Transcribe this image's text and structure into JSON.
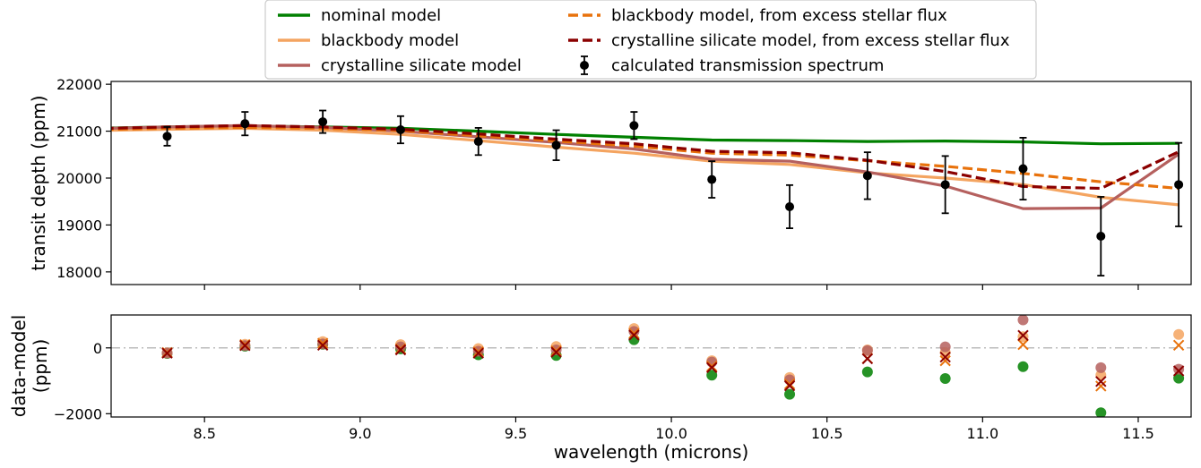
{
  "chart_data": [
    {
      "type": "line",
      "panel": "top",
      "ylabel": "transit depth (ppm)",
      "xlim": [
        8.2,
        11.67
      ],
      "ylim": [
        17730,
        22060
      ],
      "y_ticks": [
        18000,
        19000,
        20000,
        21000,
        22000
      ],
      "grid": false,
      "legend": {
        "placement": "top-center-outside",
        "entries": [
          {
            "label": "nominal model",
            "color": "#008000",
            "style": "solid"
          },
          {
            "label": "blackbody model",
            "color": "#f4a460",
            "style": "solid"
          },
          {
            "label": "crystalline silicate model",
            "color": "#b5605e",
            "style": "solid"
          },
          {
            "label": "blackbody model, from excess stellar flux",
            "color": "#e8720c",
            "style": "dashed"
          },
          {
            "label": "crystalline silicate model, from excess stellar flux",
            "color": "#8b0000",
            "style": "dashed"
          },
          {
            "label": "calculated transmission spectrum",
            "color": "#000000",
            "style": "errorbar"
          }
        ]
      },
      "x_nodes": [
        8.13,
        8.38,
        8.63,
        8.88,
        9.13,
        9.38,
        9.63,
        9.88,
        10.13,
        10.38,
        10.63,
        10.88,
        11.13,
        11.38,
        11.63
      ],
      "series": [
        {
          "name": "nominal model",
          "color": "#008000",
          "style": "solid",
          "values": [
            21060,
            21090,
            21110,
            21090,
            21060,
            21000,
            20930,
            20870,
            20810,
            20800,
            20780,
            20790,
            20770,
            20730,
            20740
          ]
        },
        {
          "name": "blackbody model",
          "color": "#f4a460",
          "style": "solid",
          "values": [
            21010,
            21040,
            21060,
            21020,
            20930,
            20800,
            20660,
            20530,
            20360,
            20290,
            20110,
            20000,
            19860,
            19590,
            19430
          ]
        },
        {
          "name": "crystalline silicate model",
          "color": "#b5605e",
          "style": "solid",
          "values": [
            21050,
            21090,
            21120,
            21080,
            21000,
            20880,
            20760,
            20620,
            20400,
            20360,
            20130,
            19830,
            19350,
            19360,
            20510
          ]
        },
        {
          "name": "blackbody model, from excess stellar flux",
          "color": "#e8720c",
          "style": "dashed",
          "values": [
            21030,
            21060,
            21080,
            21060,
            21010,
            20900,
            20790,
            20680,
            20530,
            20490,
            20370,
            20250,
            20100,
            19920,
            19780
          ]
        },
        {
          "name": "crystalline silicate model, from excess stellar flux",
          "color": "#8b0000",
          "style": "dashed",
          "values": [
            21050,
            21090,
            21120,
            21090,
            21040,
            20940,
            20830,
            20730,
            20570,
            20540,
            20380,
            20140,
            19820,
            19780,
            20560
          ]
        }
      ],
      "points": {
        "name": "calculated transmission spectrum",
        "color": "#000000",
        "x": [
          8.38,
          8.63,
          8.88,
          9.13,
          9.38,
          9.63,
          9.88,
          10.13,
          10.38,
          10.63,
          10.88,
          11.13,
          11.38,
          11.63
        ],
        "y": [
          20890,
          21160,
          21200,
          21030,
          20780,
          20700,
          21120,
          19970,
          19390,
          20050,
          19860,
          20200,
          18760,
          19860
        ],
        "yerr": [
          200,
          250,
          240,
          290,
          290,
          320,
          290,
          390,
          460,
          500,
          610,
          660,
          840,
          890
        ]
      }
    },
    {
      "type": "scatter",
      "panel": "bottom",
      "xlabel": "wavelength (microns)",
      "ylabel": "data-model\n(ppm)",
      "xlim": [
        8.2,
        11.67
      ],
      "ylim": [
        -2100,
        1000
      ],
      "x_ticks": [
        8.5,
        9.0,
        9.5,
        10.0,
        10.5,
        11.0,
        11.5
      ],
      "x_tick_labels": [
        "8.5",
        "9.0",
        "9.5",
        "10.0",
        "10.5",
        "11.0",
        "11.5"
      ],
      "y_ticks": [
        -2000,
        0
      ],
      "y_tick_labels": [
        "−2000",
        "0"
      ],
      "reference_line": {
        "y": 0,
        "color": "#bbbbbb",
        "style": "dashdot"
      },
      "x": [
        8.38,
        8.63,
        8.88,
        9.13,
        9.38,
        9.63,
        9.88,
        10.13,
        10.38,
        10.63,
        10.88,
        11.13,
        11.38,
        11.63
      ],
      "series": [
        {
          "name": "nominal model",
          "marker": "circle",
          "color": "#008000",
          "values": [
            -170,
            50,
            110,
            -30,
            -210,
            -230,
            250,
            -830,
            -1410,
            -730,
            -930,
            -570,
            -1970,
            -920
          ]
        },
        {
          "name": "blackbody model",
          "marker": "circle",
          "color": "#f4a460",
          "values": [
            -150,
            110,
            190,
            100,
            -20,
            40,
            590,
            -390,
            -900,
            -60,
            -140,
            340,
            -830,
            410
          ]
        },
        {
          "name": "crystalline silicate model",
          "marker": "circle",
          "color": "#b5605e",
          "values": [
            -160,
            70,
            120,
            30,
            -100,
            -60,
            500,
            -430,
            -970,
            -80,
            30,
            850,
            -600,
            -650
          ]
        },
        {
          "name": "blackbody model, from excess stellar flux",
          "marker": "x",
          "color": "#e8720c",
          "values": [
            -140,
            100,
            140,
            -30,
            -120,
            -90,
            440,
            -560,
            -1100,
            -320,
            -390,
            100,
            -1160,
            80
          ]
        },
        {
          "name": "crystalline silicate model, from excess stellar flux",
          "marker": "x",
          "color": "#8b0000",
          "values": [
            -160,
            70,
            80,
            -60,
            -160,
            -130,
            390,
            -600,
            -1150,
            -330,
            -280,
            380,
            -1020,
            -700
          ]
        }
      ]
    }
  ]
}
